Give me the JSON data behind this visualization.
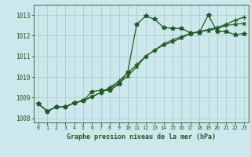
{
  "title": "Graphe pression niveau de la mer (hPa)",
  "bg_color": "#cce8ed",
  "grid_color": "#aacccc",
  "line_color": "#1e5c1e",
  "series1": {
    "x": [
      0,
      1,
      2,
      3,
      4,
      5,
      6,
      7,
      8,
      9,
      10,
      11,
      12,
      13,
      14,
      15,
      16,
      17,
      18,
      19,
      20,
      21,
      22,
      23
    ],
    "y": [
      1008.7,
      1008.35,
      1008.55,
      1008.55,
      1008.75,
      1008.85,
      1009.3,
      1009.35,
      1009.35,
      1009.65,
      1010.25,
      1012.55,
      1012.95,
      1012.8,
      1012.4,
      1012.35,
      1012.35,
      1012.15,
      1012.15,
      1013.0,
      1012.2,
      1012.2,
      1012.05,
      1012.1
    ]
  },
  "series2": {
    "x": [
      0,
      1,
      2,
      3,
      4,
      5,
      6,
      7,
      8,
      9,
      10,
      11,
      12,
      13,
      14,
      15,
      16,
      17,
      18,
      19,
      20,
      21,
      22,
      23
    ],
    "y": [
      1008.7,
      1008.35,
      1008.55,
      1008.55,
      1008.75,
      1008.85,
      1009.05,
      1009.25,
      1009.5,
      1009.8,
      1010.2,
      1010.6,
      1011.0,
      1011.3,
      1011.6,
      1011.8,
      1011.95,
      1012.1,
      1012.2,
      1012.3,
      1012.4,
      1012.55,
      1012.75,
      1012.9
    ]
  },
  "series3": {
    "x": [
      0,
      1,
      2,
      3,
      4,
      5,
      6,
      7,
      8,
      9,
      10,
      11,
      12,
      13,
      14,
      15,
      16,
      17,
      18,
      19,
      20,
      21,
      22,
      23
    ],
    "y": [
      1008.7,
      1008.35,
      1008.55,
      1008.55,
      1008.75,
      1008.85,
      1009.05,
      1009.25,
      1009.45,
      1009.7,
      1010.05,
      1010.5,
      1011.0,
      1011.3,
      1011.55,
      1011.7,
      1011.9,
      1012.1,
      1012.2,
      1012.25,
      1012.35,
      1012.5,
      1012.55,
      1012.6
    ]
  },
  "ylim": [
    1007.8,
    1013.5
  ],
  "yticks": [
    1008,
    1009,
    1010,
    1011,
    1012,
    1013
  ],
  "xlim": [
    -0.5,
    23.5
  ],
  "xticks": [
    0,
    1,
    2,
    3,
    4,
    5,
    6,
    7,
    8,
    9,
    10,
    11,
    12,
    13,
    14,
    15,
    16,
    17,
    18,
    19,
    20,
    21,
    22,
    23
  ],
  "marker_size": 2.5,
  "line_width": 0.9
}
